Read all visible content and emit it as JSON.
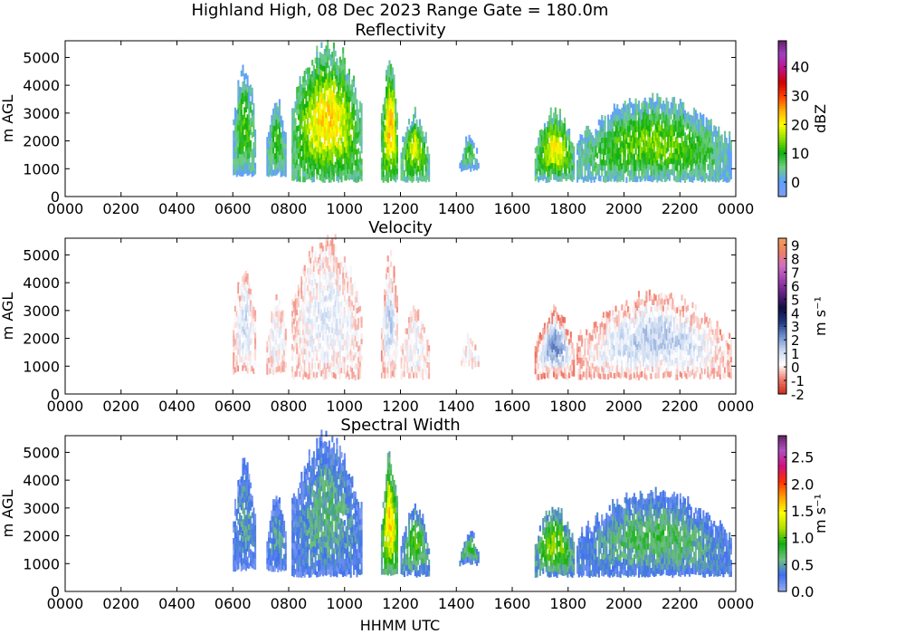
{
  "figure": {
    "title": "Highland High, 08 Dec 2023 Range Gate = 180.0m",
    "xlabel": "HHMM UTC"
  },
  "chart_data": [
    {
      "type": "heatmap",
      "title": "Reflectivity",
      "xlabel": "",
      "ylabel": "m AGL",
      "x_ticks": [
        "0000",
        "0200",
        "0400",
        "0600",
        "0800",
        "1000",
        "1200",
        "1400",
        "1600",
        "1800",
        "2000",
        "2200",
        "0000"
      ],
      "y_ticks": [
        0,
        1000,
        2000,
        3000,
        4000,
        5000
      ],
      "xlim_hours": [
        0,
        24
      ],
      "ylim": [
        0,
        5600
      ],
      "colorbar": {
        "label": "dBZ",
        "range": [
          -5,
          49
        ],
        "ticks": [
          0,
          10,
          20,
          30,
          40
        ],
        "colors": [
          "#7b9ef0",
          "#5da0ff",
          "#6fd07f",
          "#10b010",
          "#8be000",
          "#ffff00",
          "#ffb000",
          "#ff4000",
          "#d00000",
          "#c0108c",
          "#a040c0",
          "#602060"
        ]
      },
      "echoes": [
        {
          "t": 6.0,
          "t_end": 6.8,
          "z0": 700,
          "z1": 4500,
          "peak": 12
        },
        {
          "t": 7.2,
          "t_end": 7.9,
          "z0": 700,
          "z1": 3300,
          "peak": 10
        },
        {
          "t": 8.1,
          "t_end": 10.6,
          "z0": 500,
          "z1": 5400,
          "peak": 22
        },
        {
          "t": 11.3,
          "t_end": 11.9,
          "z0": 500,
          "z1": 4700,
          "peak": 24
        },
        {
          "t": 12.0,
          "t_end": 13.0,
          "z0": 500,
          "z1": 2900,
          "peak": 18
        },
        {
          "t": 14.1,
          "t_end": 14.8,
          "z0": 900,
          "z1": 2000,
          "peak": 8
        },
        {
          "t": 16.8,
          "t_end": 18.2,
          "z0": 500,
          "z1": 2900,
          "peak": 20
        },
        {
          "t": 18.3,
          "t_end": 23.8,
          "z0": 500,
          "z1": 3400,
          "peak": 14
        }
      ]
    },
    {
      "type": "heatmap",
      "title": "Velocity",
      "xlabel": "",
      "ylabel": "m AGL",
      "x_ticks": [
        "0000",
        "0200",
        "0400",
        "0600",
        "0800",
        "1000",
        "1200",
        "1400",
        "1600",
        "1800",
        "2000",
        "2200",
        "0000"
      ],
      "y_ticks": [
        0,
        1000,
        2000,
        3000,
        4000,
        5000
      ],
      "xlim_hours": [
        0,
        24
      ],
      "ylim": [
        0,
        5600
      ],
      "colorbar": {
        "label": "m s⁻¹",
        "range": [
          -2,
          9.5
        ],
        "ticks": [
          -2,
          -1,
          0,
          1,
          2,
          3,
          4,
          5,
          6,
          7,
          8,
          9
        ],
        "colors": [
          "#d03020",
          "#f08070",
          "#ffffff",
          "#c8d8f0",
          "#7090d0",
          "#203880",
          "#101040",
          "#602080",
          "#a040b0",
          "#d070c0",
          "#f08060",
          "#f0a060"
        ]
      },
      "echoes": [
        {
          "t": 6.0,
          "t_end": 6.8,
          "z0": 700,
          "z1": 4500,
          "peak": 1.2
        },
        {
          "t": 7.2,
          "t_end": 7.9,
          "z0": 700,
          "z1": 3300,
          "peak": 0.6
        },
        {
          "t": 8.1,
          "t_end": 10.6,
          "z0": 500,
          "z1": 5400,
          "peak": 0.8
        },
        {
          "t": 11.3,
          "t_end": 11.9,
          "z0": 500,
          "z1": 4700,
          "peak": 1.5
        },
        {
          "t": 12.0,
          "t_end": 13.0,
          "z0": 500,
          "z1": 2900,
          "peak": 0.7
        },
        {
          "t": 14.1,
          "t_end": 14.8,
          "z0": 900,
          "z1": 2000,
          "peak": 0.4
        },
        {
          "t": 16.8,
          "t_end": 18.2,
          "z0": 500,
          "z1": 2900,
          "peak": 2.8
        },
        {
          "t": 18.3,
          "t_end": 23.8,
          "z0": 500,
          "z1": 3400,
          "peak": 1.6
        }
      ]
    },
    {
      "type": "heatmap",
      "title": "Spectral Width",
      "xlabel": "HHMM UTC",
      "ylabel": "m AGL",
      "x_ticks": [
        "0000",
        "0200",
        "0400",
        "0600",
        "0800",
        "1000",
        "1200",
        "1400",
        "1600",
        "1800",
        "2000",
        "2200",
        "0000"
      ],
      "y_ticks": [
        0,
        1000,
        2000,
        3000,
        4000,
        5000
      ],
      "xlim_hours": [
        0,
        24
      ],
      "ylim": [
        0,
        5600
      ],
      "colorbar": {
        "label": "m s⁻¹",
        "range": [
          0,
          2.9
        ],
        "ticks": [
          "0.0",
          "0.5",
          "1.0",
          "1.5",
          "2.0",
          "2.5"
        ],
        "colors": [
          "#8fa8f0",
          "#4070f0",
          "#70c080",
          "#10b010",
          "#b0e000",
          "#ffff00",
          "#ffa000",
          "#ff3000",
          "#d01080",
          "#b050c0",
          "#602060"
        ]
      },
      "echoes": [
        {
          "t": 6.0,
          "t_end": 6.8,
          "z0": 700,
          "z1": 4500,
          "peak": 0.5
        },
        {
          "t": 7.2,
          "t_end": 7.9,
          "z0": 700,
          "z1": 3300,
          "peak": 0.5
        },
        {
          "t": 8.1,
          "t_end": 10.6,
          "z0": 500,
          "z1": 5400,
          "peak": 0.6
        },
        {
          "t": 11.3,
          "t_end": 11.9,
          "z0": 500,
          "z1": 4700,
          "peak": 1.6
        },
        {
          "t": 12.0,
          "t_end": 13.0,
          "z0": 500,
          "z1": 2900,
          "peak": 0.9
        },
        {
          "t": 14.1,
          "t_end": 14.8,
          "z0": 900,
          "z1": 2000,
          "peak": 0.8
        },
        {
          "t": 16.8,
          "t_end": 18.2,
          "z0": 500,
          "z1": 2900,
          "peak": 1.1
        },
        {
          "t": 18.3,
          "t_end": 23.8,
          "z0": 500,
          "z1": 3400,
          "peak": 0.7
        }
      ]
    }
  ]
}
